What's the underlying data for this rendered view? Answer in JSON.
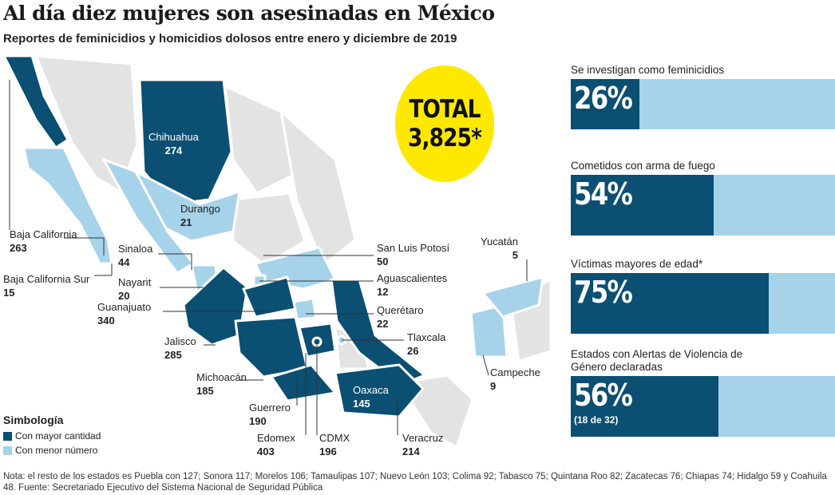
{
  "header": {
    "title": "Al día diez mujeres son asesinadas en México",
    "subtitle": "Reportes de feminicidios y homicidios dolosos entre enero y diciembre de 2019"
  },
  "total": {
    "label": "TOTAL",
    "value": "3,825*"
  },
  "colors": {
    "mayor": "#0b4f72",
    "menor": "#a6d3ea",
    "other_states": "#e3e3e3",
    "total_circle": "#ffe800"
  },
  "states": [
    {
      "name": "Chihuahua",
      "value": "274",
      "category": "mayor"
    },
    {
      "name": "Durango",
      "value": "21",
      "category": "menor"
    },
    {
      "name": "Baja California",
      "value": "263",
      "category": "mayor"
    },
    {
      "name": "Baja California Sur",
      "value": "15",
      "category": "menor"
    },
    {
      "name": "Sinaloa",
      "value": "44",
      "category": "menor"
    },
    {
      "name": "Nayarit",
      "value": "20",
      "category": "menor"
    },
    {
      "name": "Guanajuato",
      "value": "340",
      "category": "mayor"
    },
    {
      "name": "Jalisco",
      "value": "285",
      "category": "mayor"
    },
    {
      "name": "Michoacán",
      "value": "185",
      "category": "mayor"
    },
    {
      "name": "Guerrero",
      "value": "190",
      "category": "mayor"
    },
    {
      "name": "Edomex",
      "value": "403",
      "category": "mayor"
    },
    {
      "name": "CDMX",
      "value": "196",
      "category": "mayor"
    },
    {
      "name": "Veracruz",
      "value": "214",
      "category": "mayor"
    },
    {
      "name": "Oaxaca",
      "value": "145",
      "category": "mayor"
    },
    {
      "name": "Campeche",
      "value": "9",
      "category": "menor"
    },
    {
      "name": "Yucatán",
      "value": "5",
      "category": "menor"
    },
    {
      "name": "San Luis Potosí",
      "value": "50",
      "category": "menor"
    },
    {
      "name": "Aguascalientes",
      "value": "12",
      "category": "menor"
    },
    {
      "name": "Querétaro",
      "value": "22",
      "category": "menor"
    },
    {
      "name": "Tlaxcala",
      "value": "26",
      "category": "menor"
    }
  ],
  "stats": [
    {
      "caption": "Se investigan como feminicidios",
      "label": "26%",
      "percent": 26
    },
    {
      "caption": "Cometidos con arma de fuego",
      "label": "54%",
      "percent": 54
    },
    {
      "caption": "Víctimas mayores de edad*",
      "label": "75%",
      "percent": 75
    },
    {
      "caption": "Estados con Alertas de Violencia de Género declaradas",
      "label": "56%",
      "sub": "(18 de 32)",
      "percent": 56
    }
  ],
  "legend": {
    "title": "Simbología",
    "items": [
      "Con mayor cantidad",
      "Con menor número"
    ]
  },
  "note": "Nota: el resto de los estados es Puebla con 127; Sonora 117; Morelos 106; Tamaulipas 107; Nuevo León 103; Colima 92; Tabasco 75; Quintana Roo 82; Zacatecas 76; Chiapas 74; Hidalgo 59  y Coahuila 48. Fuente: Secretariado Ejecutivo del Sistema Nacional de Seguridad Pública"
}
